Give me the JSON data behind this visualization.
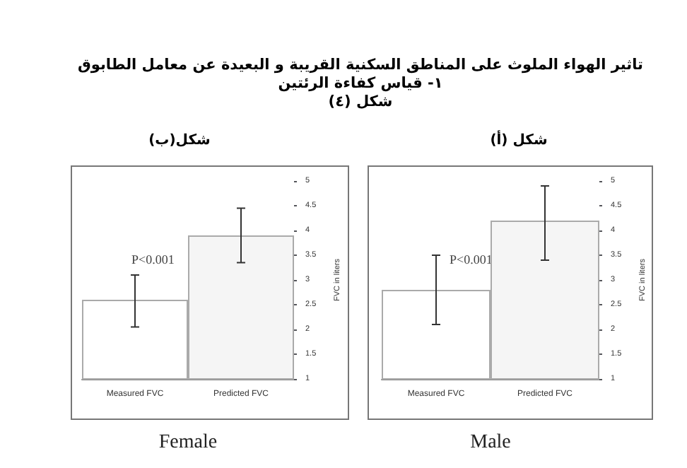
{
  "chart_data": [
    {
      "type": "bar",
      "title": "تاثير الهواء الملوث على المناطق السكنية القريبة و البعيدة عن معامل الطابوق",
      "subtitle": "١- قياس كفاءة الرئتين\nشكل (٤)",
      "annotations": [
        "شكل(ب)",
        "P<0.001"
      ],
      "xlabel": "Female",
      "ylabel": "FVC in liters",
      "categories": [
        "Measured FVC",
        "Predicted FVC"
      ],
      "values": [
        2.6,
        3.9
      ],
      "colors": [
        "#ffffff",
        "#f5f5f5"
      ],
      "errors": [
        [
          2.05,
          3.1
        ],
        [
          3.35,
          4.45
        ]
      ],
      "ylim": [
        1,
        5
      ],
      "yticks": [
        1,
        1.5,
        2,
        2.5,
        3,
        3.5,
        4,
        4.5,
        5
      ]
    },
    {
      "type": "bar",
      "annotations": [
        "شكل (أ)",
        "P<0.001"
      ],
      "xlabel": "Male",
      "ylabel": "FVC in liters",
      "categories": [
        "Measured FVC",
        "Predicted FVC"
      ],
      "values": [
        2.8,
        4.2
      ],
      "colors": [
        "#ffffff",
        "#f5f5f5"
      ],
      "errors": [
        [
          2.1,
          3.5
        ],
        [
          3.4,
          4.9
        ]
      ],
      "ylim": [
        1,
        5
      ],
      "yticks": [
        1,
        1.5,
        2,
        2.5,
        3,
        3.5,
        4,
        4.5,
        5
      ]
    }
  ]
}
